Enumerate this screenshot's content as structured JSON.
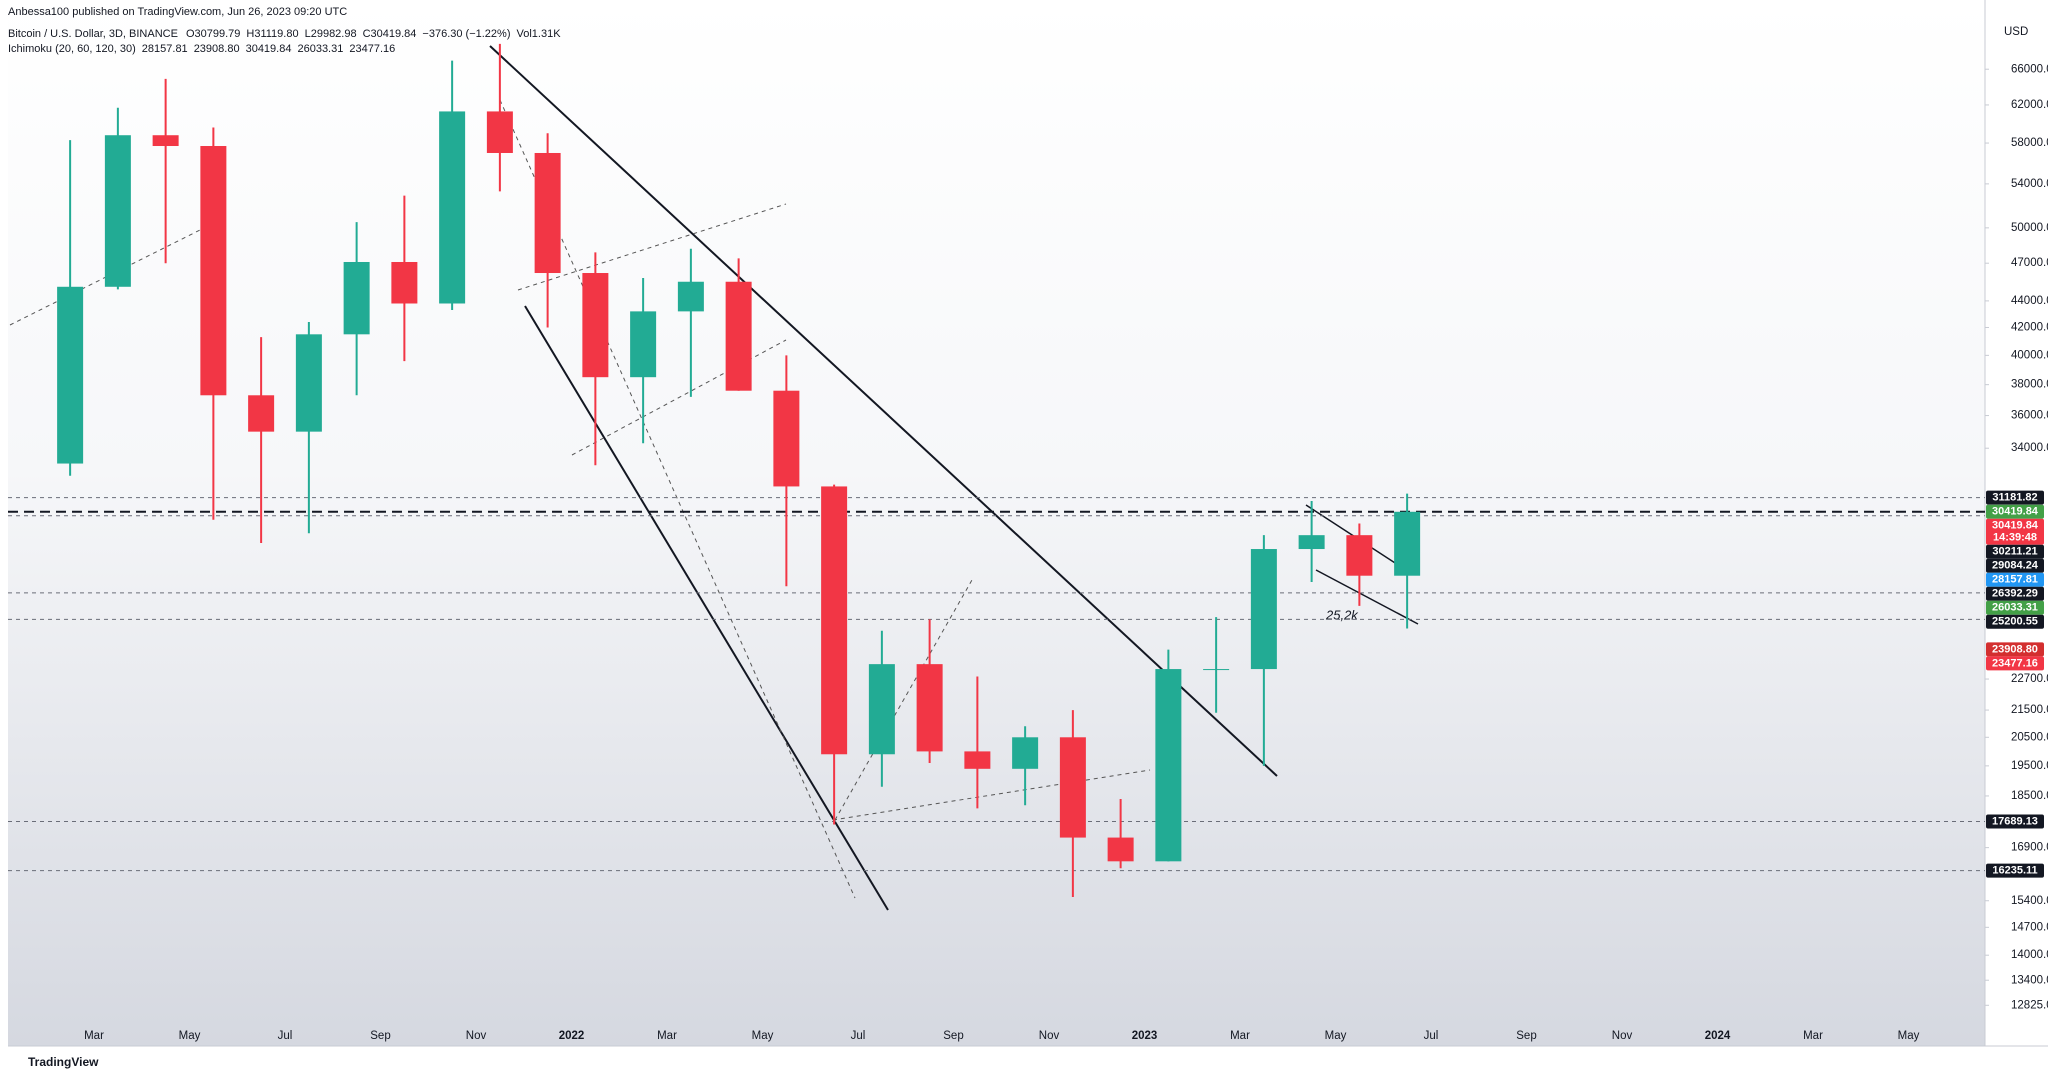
{
  "header": {
    "published": "Anbessa100 published on TradingView.com, Jun 26, 2023 09:20 UTC",
    "footer": "TradingView"
  },
  "chart_data": {
    "type": "candlestick",
    "symbol": "Bitcoin / U.S. Dollar, 3D, BINANCE",
    "ohlc_legend": [
      "O30799.79",
      "H31119.80",
      "L29982.98",
      "C30419.84",
      "−376.30 (−1.22%)",
      "Vol1.31K"
    ],
    "indicator": {
      "name": "Ichimoku (20, 60, 120, 30)",
      "values": [
        {
          "value": 28157.81,
          "label": "28157.81",
          "color": "#2196f3"
        },
        {
          "value": 23908.8,
          "label": "23908.80",
          "color": "#b22833"
        },
        {
          "value": 30419.84,
          "label": "30419.84",
          "color": "#43a047"
        },
        {
          "value": 26033.31,
          "label": "26033.31",
          "color": "#006400"
        },
        {
          "value": 23477.16,
          "label": "23477.16",
          "color": "#f23645"
        }
      ]
    },
    "y_axis_title": "USD",
    "log_scale": true,
    "grid": false,
    "up_color": "#22ab94",
    "down_color": "#f23645",
    "ylim": [
      12390,
      74500
    ],
    "yticks": [
      {
        "value": 66000,
        "label": "66000.00"
      },
      {
        "value": 62000,
        "label": "62000.00"
      },
      {
        "value": 58000,
        "label": "58000.00"
      },
      {
        "value": 54000,
        "label": "54000.00"
      },
      {
        "value": 50000,
        "label": "50000.00"
      },
      {
        "value": 47000,
        "label": "47000.00"
      },
      {
        "value": 44000,
        "label": "44000.00"
      },
      {
        "value": 42000,
        "label": "42000.00"
      },
      {
        "value": 40000,
        "label": "40000.00"
      },
      {
        "value": 38000,
        "label": "38000.00"
      },
      {
        "value": 36000,
        "label": "36000.00"
      },
      {
        "value": 34000,
        "label": "34000.00"
      },
      {
        "value": 22700,
        "label": "22700.00"
      },
      {
        "value": 21500,
        "label": "21500.00"
      },
      {
        "value": 20500,
        "label": "20500.00"
      },
      {
        "value": 19500,
        "label": "19500.00"
      },
      {
        "value": 18500,
        "label": "18500.00"
      },
      {
        "value": 16900,
        "label": "16900.00"
      },
      {
        "value": 15400,
        "label": "15400.00"
      },
      {
        "value": 14700,
        "label": "14700.00"
      },
      {
        "value": 14000,
        "label": "14000.00"
      },
      {
        "value": 13400,
        "label": "13400.00"
      },
      {
        "value": 12825,
        "label": "12825.00"
      }
    ],
    "xticks": [
      "Mar",
      "May",
      "Jul",
      "Sep",
      "Nov",
      "2022",
      "Mar",
      "May",
      "Jul",
      "Sep",
      "Nov",
      "2023",
      "Mar",
      "May",
      "Jul",
      "Sep",
      "Nov",
      "2024",
      "Mar",
      "May"
    ],
    "open": [
      33100,
      45100,
      58800,
      57700,
      37300,
      35000,
      41500,
      47100,
      43800,
      61300,
      57000,
      46200,
      38500,
      43200,
      45500,
      37600,
      31800,
      19900,
      23300,
      20000,
      19400,
      20500,
      17200,
      16500,
      23100,
      23100,
      28500,
      29200,
      27200
    ],
    "high": [
      58300,
      61700,
      64900,
      59600,
      41300,
      42400,
      50500,
      52900,
      67000,
      69000,
      59000,
      47900,
      45800,
      48200,
      47400,
      40000,
      31900,
      24700,
      25200,
      22800,
      20900,
      21500,
      18400,
      23900,
      25300,
      29200,
      31000,
      29800,
      31400
    ],
    "low": [
      32400,
      44900,
      47000,
      30000,
      28800,
      29300,
      37300,
      39600,
      43300,
      53300,
      42000,
      33000,
      34300,
      37200,
      37600,
      26700,
      17600,
      18800,
      19600,
      18100,
      18200,
      15500,
      16300,
      16500,
      21400,
      19500,
      26900,
      25800,
      24800
    ],
    "close": [
      45100,
      58800,
      57700,
      37300,
      35000,
      41500,
      47100,
      43800,
      61300,
      57000,
      46200,
      38500,
      43200,
      45500,
      37600,
      31800,
      19900,
      23300,
      20000,
      19400,
      20500,
      17200,
      16500,
      23100,
      23100,
      28500,
      29200,
      27200,
      30420
    ],
    "price_tags": [
      {
        "value": 31181.82,
        "label": "31181.82",
        "color": "#131722"
      },
      {
        "value": 30419.84,
        "label": "30419.84",
        "color": "#43a047"
      },
      {
        "value": 30419.84,
        "label": "30419.84",
        "color": "#f23645",
        "countdown": "14:39:48"
      },
      {
        "value": 30211.21,
        "label": "30211.21",
        "color": "#131722"
      },
      {
        "value": 29084.24,
        "label": "29084.24",
        "color": "#131722"
      },
      {
        "value": 28157.81,
        "label": "28157.81",
        "color": "#2196f3"
      },
      {
        "value": 26392.29,
        "label": "26392.29",
        "color": "#131722"
      },
      {
        "value": 26033.31,
        "label": "26033.31",
        "color": "#43a047"
      },
      {
        "value": 25200.55,
        "label": "25200.55",
        "color": "#131722"
      },
      {
        "value": 23908.8,
        "label": "23908.80",
        "color": "#d32f2f"
      },
      {
        "value": 23477.16,
        "label": "23477.16",
        "color": "#f23645"
      },
      {
        "value": 17689.13,
        "label": "17689.13",
        "color": "#131722"
      },
      {
        "value": 16235.11,
        "label": "16235.11",
        "color": "#131722"
      }
    ],
    "horizontal_lines": [
      31181.82,
      30211.21,
      26392.29,
      25200.55,
      17689.13,
      16235.11
    ],
    "current_price_line": 30419.84,
    "annotation": "25,2k"
  }
}
